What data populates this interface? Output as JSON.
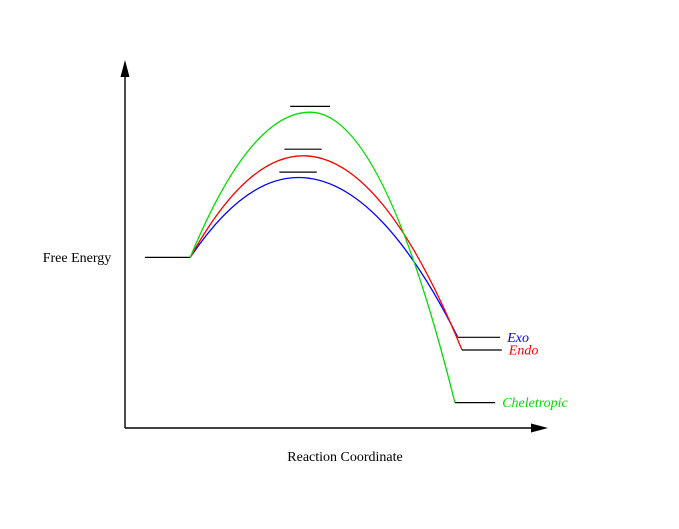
{
  "chart_data": {
    "type": "line",
    "title": "",
    "xlabel": "Reaction Coordinate",
    "ylabel": "Free Energy",
    "x_axis": {
      "min": 0,
      "max": 1,
      "ticks": [],
      "grid": false
    },
    "y_axis": {
      "min": 0,
      "max": 100,
      "ticks": [],
      "grid": false,
      "units": "arbitrary energy units"
    },
    "legend_position": "labels-right-of-product-levels",
    "reactant": {
      "energy": 47,
      "x_start": 0.048,
      "x_end": 0.157
    },
    "series": [
      {
        "name": "Exo",
        "color": "#0000ff",
        "peak_x": 0.417,
        "ts_energy": 69,
        "ts_marker_energy": 70.5,
        "ts_marker_halfwidth": 0.045,
        "product_energy": 25,
        "product_x_start": 0.802,
        "product_x_end": 0.904
      },
      {
        "name": "Endo",
        "color": "#ff0000",
        "peak_x": 0.429,
        "ts_energy": 75,
        "ts_marker_energy": 76.8,
        "ts_marker_halfwidth": 0.045,
        "product_energy": 21.5,
        "product_x_start": 0.812,
        "product_x_end": 0.908
      },
      {
        "name": "Cheletropic",
        "color": "#00dd00",
        "peak_x": 0.446,
        "ts_energy": 87,
        "ts_marker_energy": 88.6,
        "ts_marker_halfwidth": 0.048,
        "product_energy": 7,
        "product_x_start": 0.795,
        "product_x_end": 0.892
      }
    ]
  }
}
